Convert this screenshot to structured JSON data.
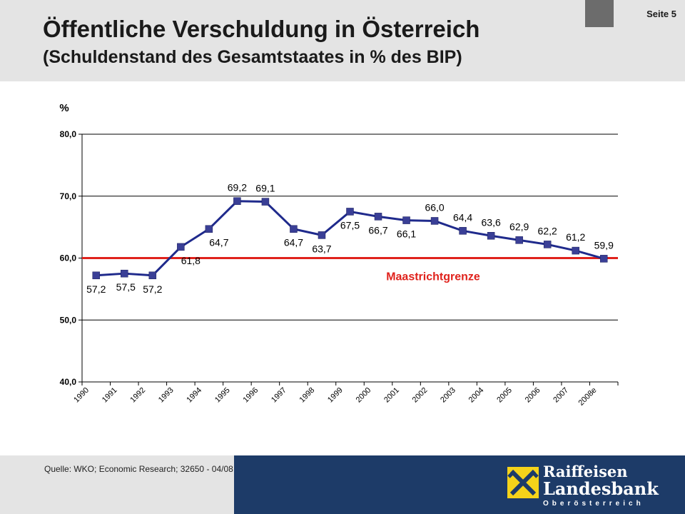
{
  "header": {
    "title": "Öffentliche Verschuldung in Österreich",
    "subtitle": "(Schuldenstand des Gesamtstaates in % des BIP)",
    "page_label": "Seite 5"
  },
  "footer": {
    "source": "Quelle: WKO; Economic Research; 32650 - 04/08",
    "logo": {
      "line1": "Raiffeisen",
      "line2": "Landesbank",
      "line3": "Oberösterreich"
    }
  },
  "colors": {
    "series": "#1f2a8c",
    "marker": "#3a3f96",
    "reference_line": "#e0221c",
    "header_bg": "#e4e4e4",
    "brand_navy": "#1d3b68",
    "brand_yellow": "#f5d31a"
  },
  "chart_data": {
    "type": "line",
    "title": "",
    "xlabel": "",
    "ylabel": "%",
    "ylim": [
      40,
      80
    ],
    "yticks": [
      "40,0",
      "50,0",
      "60,0",
      "70,0",
      "80,0"
    ],
    "ytick_values": [
      40,
      50,
      60,
      70,
      80
    ],
    "grid": "horizontal",
    "categories": [
      "1990",
      "1991",
      "1992",
      "1993",
      "1994",
      "1995",
      "1996",
      "1997",
      "1998",
      "1999",
      "2000",
      "2001",
      "2002",
      "2003",
      "2004",
      "2005",
      "2006",
      "2007",
      "2008e"
    ],
    "series": [
      {
        "name": "",
        "values": [
          57.2,
          57.5,
          57.2,
          61.8,
          64.7,
          69.2,
          69.1,
          64.7,
          63.7,
          67.5,
          66.7,
          66.1,
          66.0,
          64.4,
          63.6,
          62.9,
          62.2,
          61.2,
          59.9
        ],
        "labels": [
          "57,2",
          "57,5",
          "57,2",
          "61,8",
          "64,7",
          "69,2",
          "69,1",
          "64,7",
          "63,7",
          "67,5",
          "66,7",
          "66,1",
          "66,0",
          "64,4",
          "63,6",
          "62,9",
          "62,2",
          "61,2",
          "59,9"
        ]
      }
    ],
    "reference_line": {
      "value": 60,
      "label": "Maastrichtgrenze"
    }
  }
}
